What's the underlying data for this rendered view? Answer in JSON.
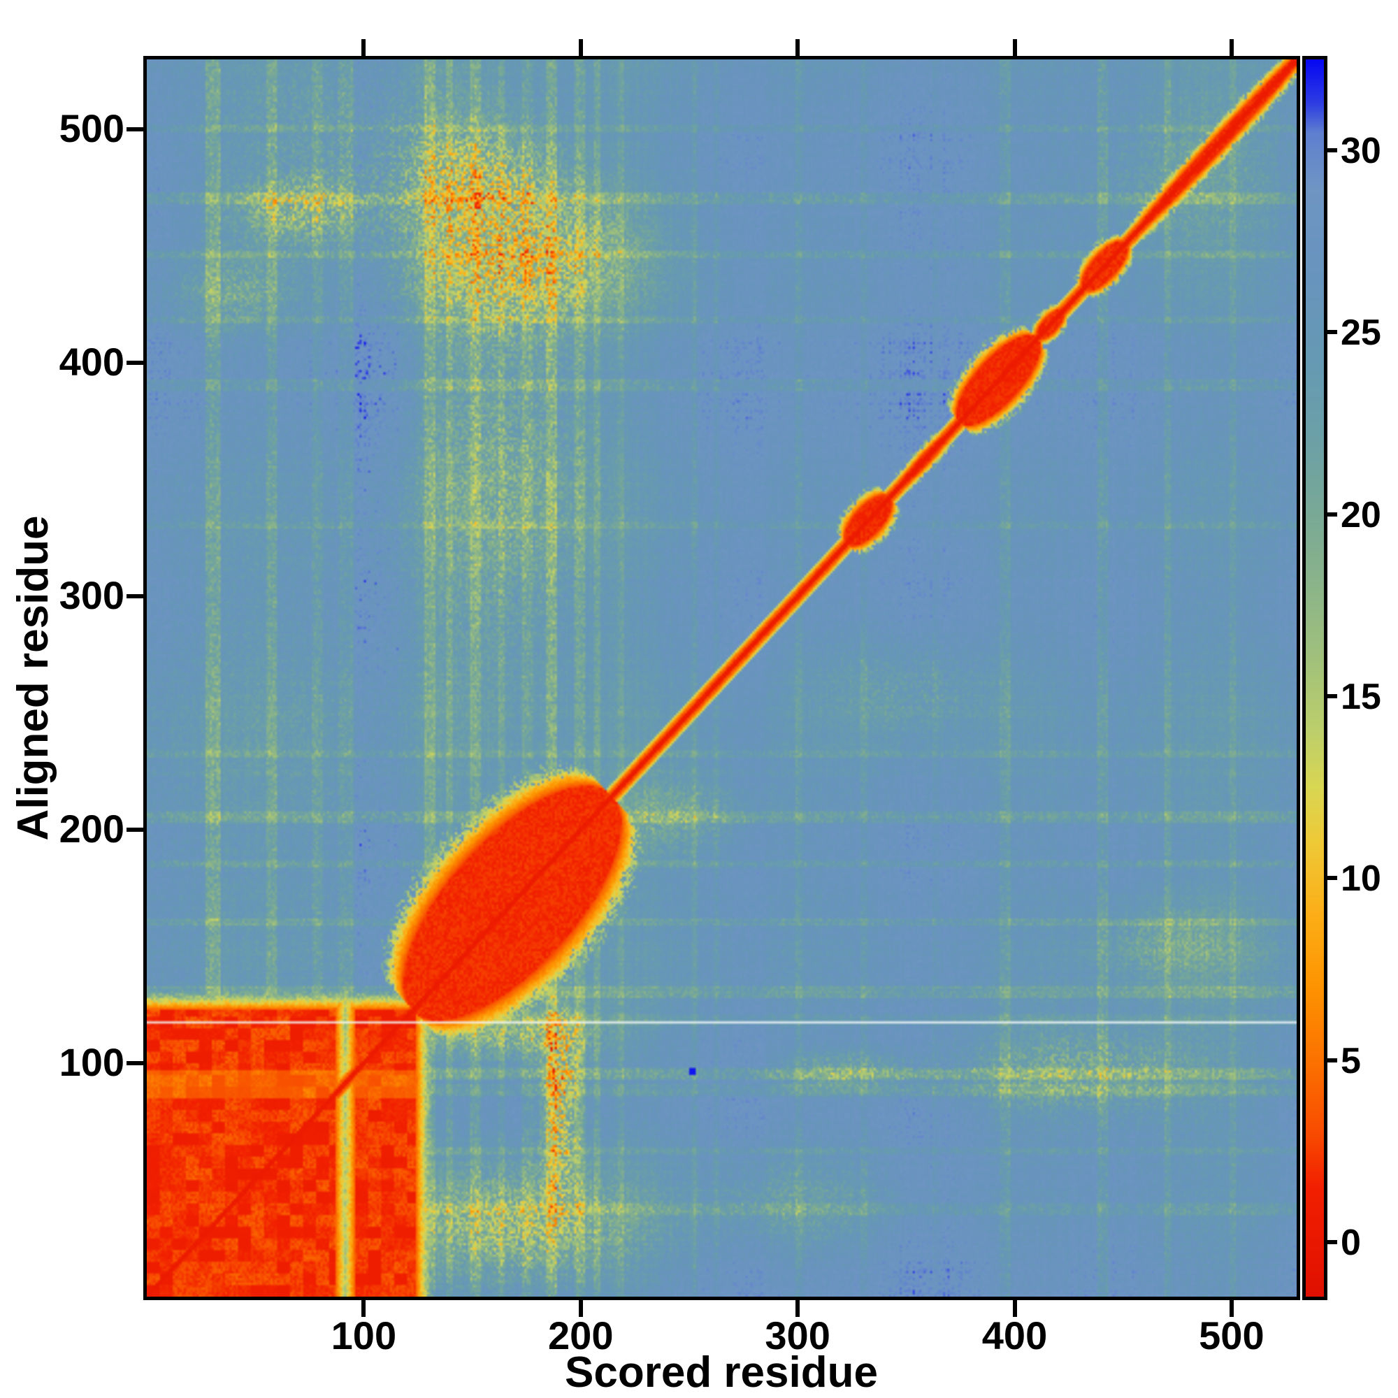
{
  "chart_data": {
    "type": "heatmap",
    "title": "",
    "xlabel": "Scored residue",
    "ylabel": "Aligned residue",
    "x_range": [
      0,
      530
    ],
    "y_range": [
      0,
      530
    ],
    "x_ticks": [
      100,
      200,
      300,
      400,
      500
    ],
    "y_ticks": [
      100,
      200,
      300,
      400,
      500
    ],
    "grid": false,
    "legend_position": "none",
    "colorbar": {
      "position": "right",
      "ticks": [
        0,
        5,
        10,
        15,
        20,
        25,
        30
      ],
      "range": [
        -1.5,
        32.5
      ],
      "stops": [
        [
          -1.5,
          "#df1000"
        ],
        [
          1.5,
          "#f22000"
        ],
        [
          3,
          "#f84c00"
        ],
        [
          5,
          "#fb7200"
        ],
        [
          7,
          "#fd9300"
        ],
        [
          9,
          "#fcae17"
        ],
        [
          11,
          "#eec937"
        ],
        [
          12.5,
          "#d9d652"
        ],
        [
          14,
          "#bdcf6a"
        ],
        [
          16,
          "#a1c17b"
        ],
        [
          18,
          "#8bb489"
        ],
        [
          20,
          "#79a996"
        ],
        [
          22,
          "#6ca0a6"
        ],
        [
          24,
          "#669ab2"
        ],
        [
          26.5,
          "#6794bd"
        ],
        [
          29,
          "#6f95c3"
        ],
        [
          30.5,
          "#5e7ed0"
        ],
        [
          31.3,
          "#2e3ee2"
        ],
        [
          32.5,
          "#0707f2"
        ]
      ]
    },
    "colors": {
      "axis": "#000000",
      "background": "#ffffff"
    },
    "features": {
      "base": 26.6,
      "cell_noise": 2.6,
      "diagonal": {
        "core_value": 0.3,
        "fringe": 5
      },
      "diag_blobs": [
        {
          "center": 168,
          "half": 46,
          "spread": 40,
          "fringe": 16,
          "value": 1.2
        },
        {
          "center": 332,
          "half": 10,
          "spread": 9,
          "fringe": 6,
          "value": 1.0
        },
        {
          "center": 392,
          "half": 18,
          "spread": 14,
          "fringe": 7,
          "value": 1.0
        },
        {
          "center": 416,
          "half": 6,
          "spread": 5,
          "fringe": 4,
          "value": 1.2
        },
        {
          "center": 441,
          "half": 10,
          "spread": 8,
          "fringe": 5,
          "value": 1.2
        },
        {
          "center": 358,
          "half": 12,
          "spread": 3,
          "fringe": 4,
          "value": 1.2
        },
        {
          "center": 495,
          "half": 40,
          "spread": 4,
          "fringe": 5,
          "value": 1.0
        }
      ],
      "blocks": [
        {
          "x": [
            0,
            86
          ],
          "y": [
            0,
            122
          ],
          "value": 0.8,
          "tex": 3.2,
          "fringe": 7
        },
        {
          "x": [
            96,
            123
          ],
          "y": [
            0,
            122
          ],
          "value": 0.8,
          "tex": 3.2,
          "fringe": 7
        }
      ],
      "v_streaks": [
        {
          "x": 30,
          "w": 3,
          "drop": 4.5
        },
        {
          "x": 57,
          "w": 2,
          "drop": 3.5
        },
        {
          "x": 78,
          "w": 2,
          "drop": 3
        },
        {
          "x": 91,
          "w": 3,
          "drop": 2.5
        },
        {
          "x": 130,
          "w": 2,
          "drop": 4
        },
        {
          "x": 139,
          "w": 1,
          "drop": 3
        },
        {
          "x": 151,
          "w": 2,
          "drop": 3.5
        },
        {
          "x": 163,
          "w": 1,
          "drop": 3
        },
        {
          "x": 175,
          "w": 2,
          "drop": 3
        },
        {
          "x": 186,
          "w": 2,
          "drop": 5
        },
        {
          "x": 199,
          "w": 2,
          "drop": 4
        },
        {
          "x": 207,
          "w": 1,
          "drop": 3
        },
        {
          "x": 218,
          "w": 1,
          "drop": 2.5
        },
        {
          "x": 252,
          "w": 1,
          "drop": 2.5
        },
        {
          "x": 262,
          "w": 1,
          "drop": 2
        },
        {
          "x": 300,
          "w": 1,
          "drop": 2.5
        },
        {
          "x": 330,
          "w": 1,
          "drop": 2.5
        },
        {
          "x": 363,
          "w": 1,
          "drop": 2
        },
        {
          "x": 395,
          "w": 2,
          "drop": 3
        },
        {
          "x": 440,
          "w": 2,
          "drop": 3.5
        },
        {
          "x": 470,
          "w": 1,
          "drop": 3
        },
        {
          "x": 500,
          "w": 1,
          "drop": 2.5
        },
        {
          "x": 106,
          "w": 10,
          "drop": -1.8
        },
        {
          "x": 120,
          "w": 3,
          "drop": -1.2
        }
      ],
      "h_streaks": [
        {
          "y": 37,
          "h": 2,
          "drop": 3
        },
        {
          "y": 62,
          "h": 1,
          "drop": 2.5
        },
        {
          "y": 88,
          "h": 2,
          "drop": 3
        },
        {
          "y": 95,
          "h": 2,
          "drop": 4.5
        },
        {
          "y": 118,
          "h": 2,
          "drop": 2
        },
        {
          "y": 130,
          "h": 2,
          "drop": 3.5
        },
        {
          "y": 160,
          "h": 1,
          "drop": 3
        },
        {
          "y": 185,
          "h": 1,
          "drop": 3
        },
        {
          "y": 205,
          "h": 2,
          "drop": 4
        },
        {
          "y": 232,
          "h": 1,
          "drop": 2.5
        },
        {
          "y": 330,
          "h": 1,
          "drop": 2.5
        },
        {
          "y": 390,
          "h": 2,
          "drop": 3
        },
        {
          "y": 418,
          "h": 1,
          "drop": 2.5
        },
        {
          "y": 446,
          "h": 1,
          "drop": 3
        },
        {
          "y": 470,
          "h": 2,
          "drop": 4
        },
        {
          "y": 500,
          "h": 1,
          "drop": 2.5
        }
      ],
      "smudges": [
        {
          "cx": 170,
          "cy": 445,
          "rx": 38,
          "ry": 22,
          "drop": 11
        },
        {
          "cx": 150,
          "cy": 480,
          "rx": 25,
          "ry": 15,
          "drop": 7
        },
        {
          "cx": 165,
          "cy": 350,
          "rx": 30,
          "ry": 55,
          "drop": 6
        },
        {
          "cx": 70,
          "cy": 465,
          "rx": 22,
          "ry": 10,
          "drop": 8
        },
        {
          "cx": 40,
          "cy": 430,
          "rx": 20,
          "ry": 12,
          "drop": 5
        },
        {
          "cx": 100,
          "cy": 500,
          "rx": 60,
          "ry": 25,
          "drop": 4
        },
        {
          "cx": 430,
          "cy": 95,
          "rx": 45,
          "ry": 14,
          "drop": 7
        },
        {
          "cx": 320,
          "cy": 96,
          "rx": 22,
          "ry": 6,
          "drop": 6
        },
        {
          "cx": 475,
          "cy": 150,
          "rx": 28,
          "ry": 12,
          "drop": 5
        },
        {
          "cx": 190,
          "cy": 85,
          "rx": 6,
          "ry": 28,
          "drop": 13
        },
        {
          "cx": 170,
          "cy": 30,
          "rx": 40,
          "ry": 18,
          "drop": 9
        },
        {
          "cx": 168,
          "cy": 112,
          "rx": 30,
          "ry": 8,
          "drop": 8
        },
        {
          "cx": 91,
          "cy": 50,
          "rx": 5,
          "ry": 45,
          "drop": 7
        },
        {
          "cx": 240,
          "cy": 205,
          "rx": 25,
          "ry": 12,
          "drop": 5
        },
        {
          "cx": 480,
          "cy": 480,
          "rx": 35,
          "ry": 25,
          "drop": 4
        },
        {
          "cx": 350,
          "cy": 260,
          "rx": 30,
          "ry": 18,
          "drop": 3.5
        },
        {
          "cx": 300,
          "cy": 40,
          "rx": 30,
          "ry": 15,
          "drop": 4
        },
        {
          "cx": 60,
          "cy": 250,
          "rx": 70,
          "ry": 120,
          "drop": 2.2
        }
      ],
      "hlines": [
        {
          "y": 117
        }
      ],
      "points": [
        {
          "x": 251,
          "y": 96,
          "value": 32.2
        }
      ]
    }
  }
}
